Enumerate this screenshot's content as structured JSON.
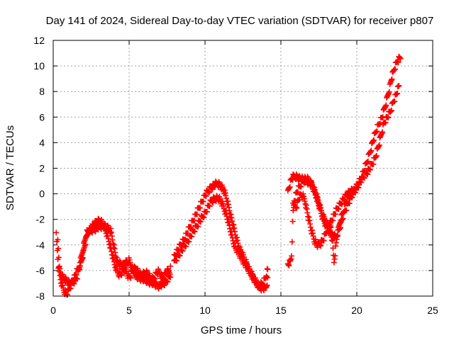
{
  "chart_data": {
    "type": "scatter",
    "title": "Day 141 of 2024, Sidereal Day-to-day VTEC variation (SDTVAR) for receiver p807",
    "xlabel": "GPS time / hours",
    "ylabel": "SDTVAR / TECUs",
    "xlim": [
      0,
      25
    ],
    "ylim": [
      -8,
      12
    ],
    "xticks": [
      0,
      5,
      10,
      15,
      20,
      25
    ],
    "yticks": [
      -8,
      -6,
      -4,
      -2,
      0,
      2,
      4,
      6,
      8,
      10,
      12
    ],
    "grid": true,
    "marker": "+",
    "color": "#ff0000",
    "series": [
      {
        "name": "SDTVAR",
        "x": [
          0.2,
          0.35,
          0.5,
          0.6,
          0.7,
          0.8,
          0.9,
          1.0,
          1.1,
          1.2,
          1.3,
          1.4,
          1.5,
          1.6,
          1.7,
          1.8,
          1.9,
          2.0,
          2.1,
          2.2,
          2.3,
          2.4,
          2.5,
          2.6,
          2.7,
          2.8,
          2.9,
          3.0,
          3.1,
          3.2,
          3.3,
          3.4,
          3.5,
          3.6,
          3.7,
          3.8,
          3.9,
          4.0,
          4.1,
          4.2,
          4.3,
          4.4,
          4.5,
          4.6,
          4.7,
          4.8,
          4.9,
          5.0,
          5.1,
          5.2,
          5.3,
          5.4,
          5.5,
          5.6,
          5.7,
          5.8,
          5.9,
          6.0,
          6.1,
          6.2,
          6.3,
          6.4,
          6.5,
          6.6,
          6.7,
          6.8,
          6.9,
          7.0,
          7.1,
          7.2,
          7.3,
          7.4,
          7.5,
          7.6,
          7.7,
          7.8,
          7.9,
          8.0,
          8.2,
          8.4,
          8.6,
          8.8,
          9.0,
          9.2,
          9.4,
          9.6,
          9.8,
          10.0,
          10.2,
          10.4,
          10.6,
          10.8,
          11.0,
          11.2,
          11.4,
          11.6,
          11.8,
          12.0,
          12.2,
          12.4,
          12.6,
          12.8,
          13.0,
          13.2,
          13.4,
          13.6,
          13.8,
          14.0,
          14.1,
          15.6,
          15.7,
          15.8,
          15.9,
          16.0,
          16.2,
          16.4,
          16.6,
          16.8,
          17.0,
          17.2,
          17.4,
          17.6,
          17.8,
          18.0,
          18.2,
          18.4,
          18.6,
          18.8,
          19.0,
          19.2,
          19.4,
          19.6,
          19.8,
          20.0,
          20.2,
          20.4,
          20.6,
          20.8,
          21.0,
          21.2,
          21.4,
          21.6,
          21.8,
          22.0,
          22.2,
          22.4,
          22.6,
          22.8
        ],
        "y": [
          -3.2,
          -5.8,
          -6.8,
          -7.2,
          -7.5,
          -7.7,
          -7.8,
          -7.6,
          -7.3,
          -7.0,
          -6.7,
          -6.5,
          -6.2,
          -6.0,
          -5.8,
          -5.5,
          -5.0,
          -4.5,
          -3.9,
          -3.4,
          -3.0,
          -2.8,
          -2.6,
          -2.5,
          -2.4,
          -2.3,
          -2.2,
          -2.1,
          -2.1,
          -2.2,
          -2.4,
          -2.7,
          -3.0,
          -3.4,
          -3.8,
          -4.3,
          -4.8,
          -5.3,
          -5.7,
          -6.0,
          -6.2,
          -6.3,
          -6.2,
          -6.0,
          -5.9,
          -6.0,
          -6.3,
          -6.5,
          -6.4,
          -6.1,
          -5.9,
          -5.8,
          -5.9,
          -6.1,
          -6.3,
          -6.4,
          -6.3,
          -6.2,
          -6.1,
          -6.2,
          -6.4,
          -6.6,
          -6.7,
          -6.6,
          -6.4,
          -6.2,
          -6.1,
          -6.2,
          -6.4,
          -6.5,
          -6.4,
          -6.2,
          -6.1,
          -6.0,
          -6.1,
          -5.1,
          -5.0,
          -4.8,
          -4.4,
          -4.0,
          -3.6,
          -3.1,
          -2.6,
          -2.1,
          -1.6,
          -1.1,
          -0.6,
          -0.1,
          0.2,
          0.5,
          0.7,
          0.8,
          0.7,
          0.4,
          -0.3,
          -1.2,
          -2.2,
          -3.2,
          -4.0,
          -4.6,
          -5.1,
          -5.6,
          -6.1,
          -6.6,
          -7.0,
          -7.2,
          -7.0,
          -6.5,
          -6.0,
          -5.4,
          -4.9,
          -1.5,
          -0.6,
          0.0,
          0.5,
          0.9,
          1.2,
          1.1,
          0.8,
          0.3,
          -0.4,
          -1.2,
          -2.0,
          -2.6,
          -3.0,
          -3.2,
          -3.4,
          -2.9,
          -2.1,
          -1.4,
          -0.8,
          -0.3,
          0.1,
          0.5,
          0.9,
          1.3,
          1.6,
          1.9,
          2.3,
          2.8,
          3.6,
          4.6,
          5.6,
          6.0,
          6.4,
          7.2,
          7.8,
          8.5
        ],
        "x2": [
          0.3,
          0.45,
          0.6,
          0.8,
          1.0,
          1.2,
          1.4,
          1.6,
          2.2,
          2.6,
          3.0,
          3.4,
          3.8,
          4.2,
          4.6,
          5.0,
          5.4,
          5.8,
          6.2,
          6.6,
          7.0,
          7.4,
          7.8,
          8.0,
          8.4,
          8.8,
          9.2,
          9.6,
          10.0,
          10.2,
          10.4,
          10.6,
          10.8,
          11.0,
          11.2,
          11.4,
          11.6,
          11.8,
          12.0,
          12.4,
          12.8,
          13.2,
          13.6,
          14.0,
          15.5,
          15.7,
          15.9,
          16.1,
          16.3,
          16.5,
          16.7,
          16.9,
          17.1,
          17.3,
          17.5,
          17.7,
          17.9,
          18.1,
          18.3,
          18.5,
          18.7,
          18.9,
          19.1,
          19.3,
          19.5,
          19.7,
          19.9,
          20.1,
          20.3,
          20.5,
          20.7,
          20.9,
          21.1,
          21.3,
          21.5,
          21.7,
          21.9,
          22.1,
          22.3,
          22.5,
          22.7,
          22.9
        ],
        "y2": [
          -3.6,
          -6.2,
          -6.5,
          -6.7,
          -6.9,
          -7.0,
          -6.8,
          -6.4,
          -3.0,
          -2.8,
          -2.6,
          -2.5,
          -2.9,
          -5.3,
          -5.6,
          -5.2,
          -6.4,
          -6.6,
          -6.8,
          -7.0,
          -7.2,
          -6.9,
          -6.2,
          -5.3,
          -4.5,
          -3.8,
          -3.0,
          -2.2,
          -1.5,
          -1.0,
          -0.6,
          -0.4,
          -0.3,
          -0.5,
          -0.9,
          -1.6,
          -2.5,
          -3.4,
          -4.2,
          -5.0,
          -5.8,
          -6.6,
          -7.3,
          -7.4,
          0.4,
          1.2,
          1.4,
          1.3,
          1.2,
          1.1,
          1.0,
          0.9,
          0.6,
          0.0,
          -0.8,
          -1.5,
          -2.1,
          -2.4,
          -2.6,
          -5.3,
          -3.3,
          -2.2,
          -1.4,
          -0.6,
          -0.2,
          0.1,
          0.4,
          0.8,
          1.3,
          1.9,
          2.6,
          3.4,
          4.3,
          5.0,
          5.6,
          6.1,
          7.0,
          8.0,
          9.1,
          9.9,
          10.5,
          10.7
        ],
        "x3": [
          15.8,
          16.0,
          16.2,
          16.4,
          16.6,
          16.8,
          17.0,
          17.2,
          17.4,
          17.6,
          17.8,
          18.0,
          18.2,
          18.4,
          18.6,
          18.8,
          19.0,
          19.2,
          19.4,
          19.6,
          19.8
        ],
        "y3": [
          -0.6,
          -1.0,
          -0.3,
          0.0,
          -0.6,
          -1.8,
          -2.8,
          -3.6,
          -4.0,
          -3.9,
          -3.5,
          -2.9,
          -2.4,
          -1.9,
          -1.4,
          -1.0,
          -0.6,
          -0.3,
          0.0,
          0.2,
          0.4
        ]
      }
    ]
  }
}
